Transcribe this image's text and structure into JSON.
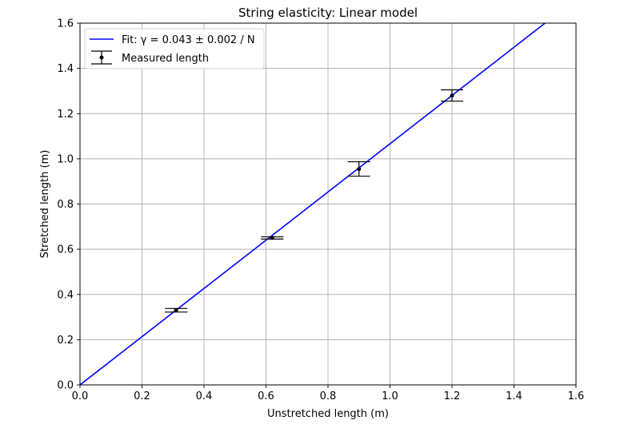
{
  "chart_data": {
    "type": "scatter",
    "title": "String elasticity: Linear model",
    "xlabel": "Unstretched length (m)",
    "ylabel": "Stretched length (m)",
    "xlim": [
      0.0,
      1.6
    ],
    "ylim": [
      0.0,
      1.6
    ],
    "xticks": [
      "0.0",
      "0.2",
      "0.4",
      "0.6",
      "0.8",
      "1.0",
      "1.2",
      "1.4",
      "1.6"
    ],
    "yticks": [
      "0.0",
      "0.2",
      "0.4",
      "0.6",
      "0.8",
      "1.0",
      "1.2",
      "1.4",
      "1.6"
    ],
    "grid": true,
    "legend_placement": "top-left",
    "series": [
      {
        "name": "Fit: γ = 0.043 ± 0.002 / N",
        "kind": "line",
        "color": "#0000ff",
        "x": [
          0.0,
          1.6
        ],
        "y": [
          0.0,
          1.7067
        ]
      },
      {
        "name": "Measured length",
        "kind": "errorbar",
        "color": "#000000",
        "x": [
          0.31,
          0.62,
          0.9,
          1.2
        ],
        "y": [
          0.33,
          0.65,
          0.955,
          1.28
        ],
        "yerr": [
          0.008,
          0.005,
          0.032,
          0.025
        ]
      }
    ]
  }
}
